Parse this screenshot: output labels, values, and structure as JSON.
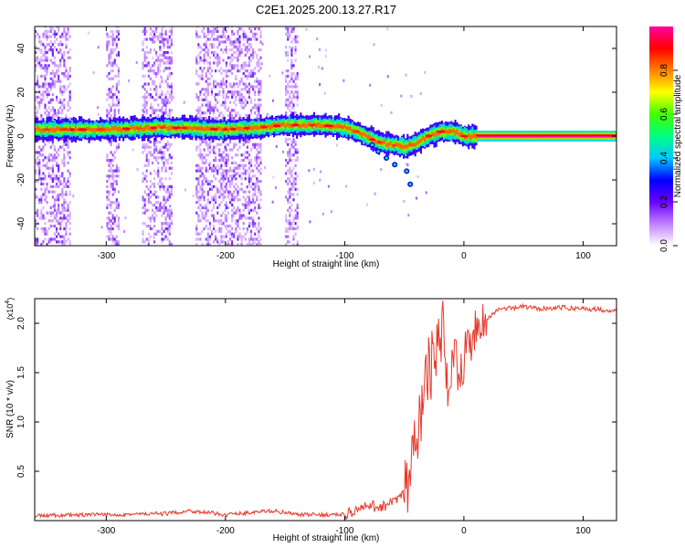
{
  "figure_title": "C2E1.2025.200.13.27.R17",
  "chart_data": [
    {
      "type": "heatmap",
      "xlabel": "Height of straight line (km)",
      "ylabel": "Frequency (Hz)",
      "xlim": [
        -360,
        128
      ],
      "ylim": [
        -50,
        50
      ],
      "x_ticks": [
        -300,
        -200,
        -100,
        0,
        100
      ],
      "x_tick_labels": [
        "-300",
        "-200",
        "-100",
        "0",
        "100"
      ],
      "y_ticks": [
        -40,
        -20,
        0,
        20,
        40
      ],
      "y_tick_labels": [
        "-40",
        "-20",
        "0",
        "20",
        "40"
      ],
      "colorbar": {
        "label": "Normalized spectral amplitude",
        "range": [
          0,
          1
        ],
        "ticks": [
          0.0,
          0.2,
          0.4,
          0.6,
          0.8
        ],
        "tick_labels": [
          "0.0",
          "0.2",
          "0.4",
          "0.6",
          "0.8"
        ],
        "colors": [
          "#ffffff",
          "#c080ff",
          "#6a00ff",
          "#0000ff",
          "#00c8ff",
          "#00ff80",
          "#40ff00",
          "#ffff00",
          "#ff8000",
          "#ff0000",
          "#ff00a0"
        ]
      },
      "ridge": {
        "x": [
          -360,
          -300,
          -250,
          -200,
          -170,
          -150,
          -120,
          -100,
          -90,
          -80,
          -70,
          -60,
          -50,
          -40,
          -30,
          -20,
          -10,
          0,
          10,
          128
        ],
        "y": [
          3,
          3,
          4,
          3,
          4,
          5,
          5,
          4,
          2,
          -1,
          -3,
          -4,
          -5,
          -3,
          0,
          2,
          2,
          0,
          0,
          0
        ]
      },
      "noise_bands_x": [
        [
          -360,
          -330
        ],
        [
          -300,
          -290
        ],
        [
          -270,
          -245
        ],
        [
          -225,
          -200
        ],
        [
          -200,
          -170
        ],
        [
          -150,
          -140
        ]
      ],
      "grid": false
    },
    {
      "type": "line",
      "xlabel": "Height of straight line (km)",
      "ylabel": "SNR (10 * v/v)",
      "multiplier_label": "(x10",
      "multiplier_exp": "4",
      "xlim": [
        -360,
        128
      ],
      "ylim": [
        0,
        2.25
      ],
      "x_ticks": [
        -300,
        -200,
        -100,
        0,
        100
      ],
      "x_tick_labels": [
        "-300",
        "-200",
        "-100",
        "0",
        "100"
      ],
      "y_ticks": [
        0.5,
        1.0,
        1.5,
        2.0
      ],
      "y_tick_labels": [
        "0.5",
        "1.0",
        "1.5",
        "2.0"
      ],
      "series": [
        {
          "color": "#e8382a",
          "x": [
            -360,
            -300,
            -250,
            -230,
            -200,
            -160,
            -140,
            -100,
            -80,
            -70,
            -60,
            -50,
            -45,
            -40,
            -35,
            -30,
            -25,
            -20,
            -18,
            -15,
            -10,
            -5,
            0,
            5,
            10,
            20,
            30,
            40,
            50,
            60,
            80,
            100,
            128
          ],
          "y": [
            0.03,
            0.04,
            0.05,
            0.08,
            0.04,
            0.08,
            0.04,
            0.04,
            0.12,
            0.12,
            0.15,
            0.25,
            0.45,
            0.8,
            1.2,
            1.5,
            1.65,
            1.8,
            2.05,
            1.25,
            1.7,
            1.6,
            1.65,
            1.75,
            2.0,
            2.05,
            2.15,
            2.15,
            2.17,
            2.15,
            2.16,
            2.15,
            2.13
          ]
        }
      ],
      "grid": false
    }
  ]
}
